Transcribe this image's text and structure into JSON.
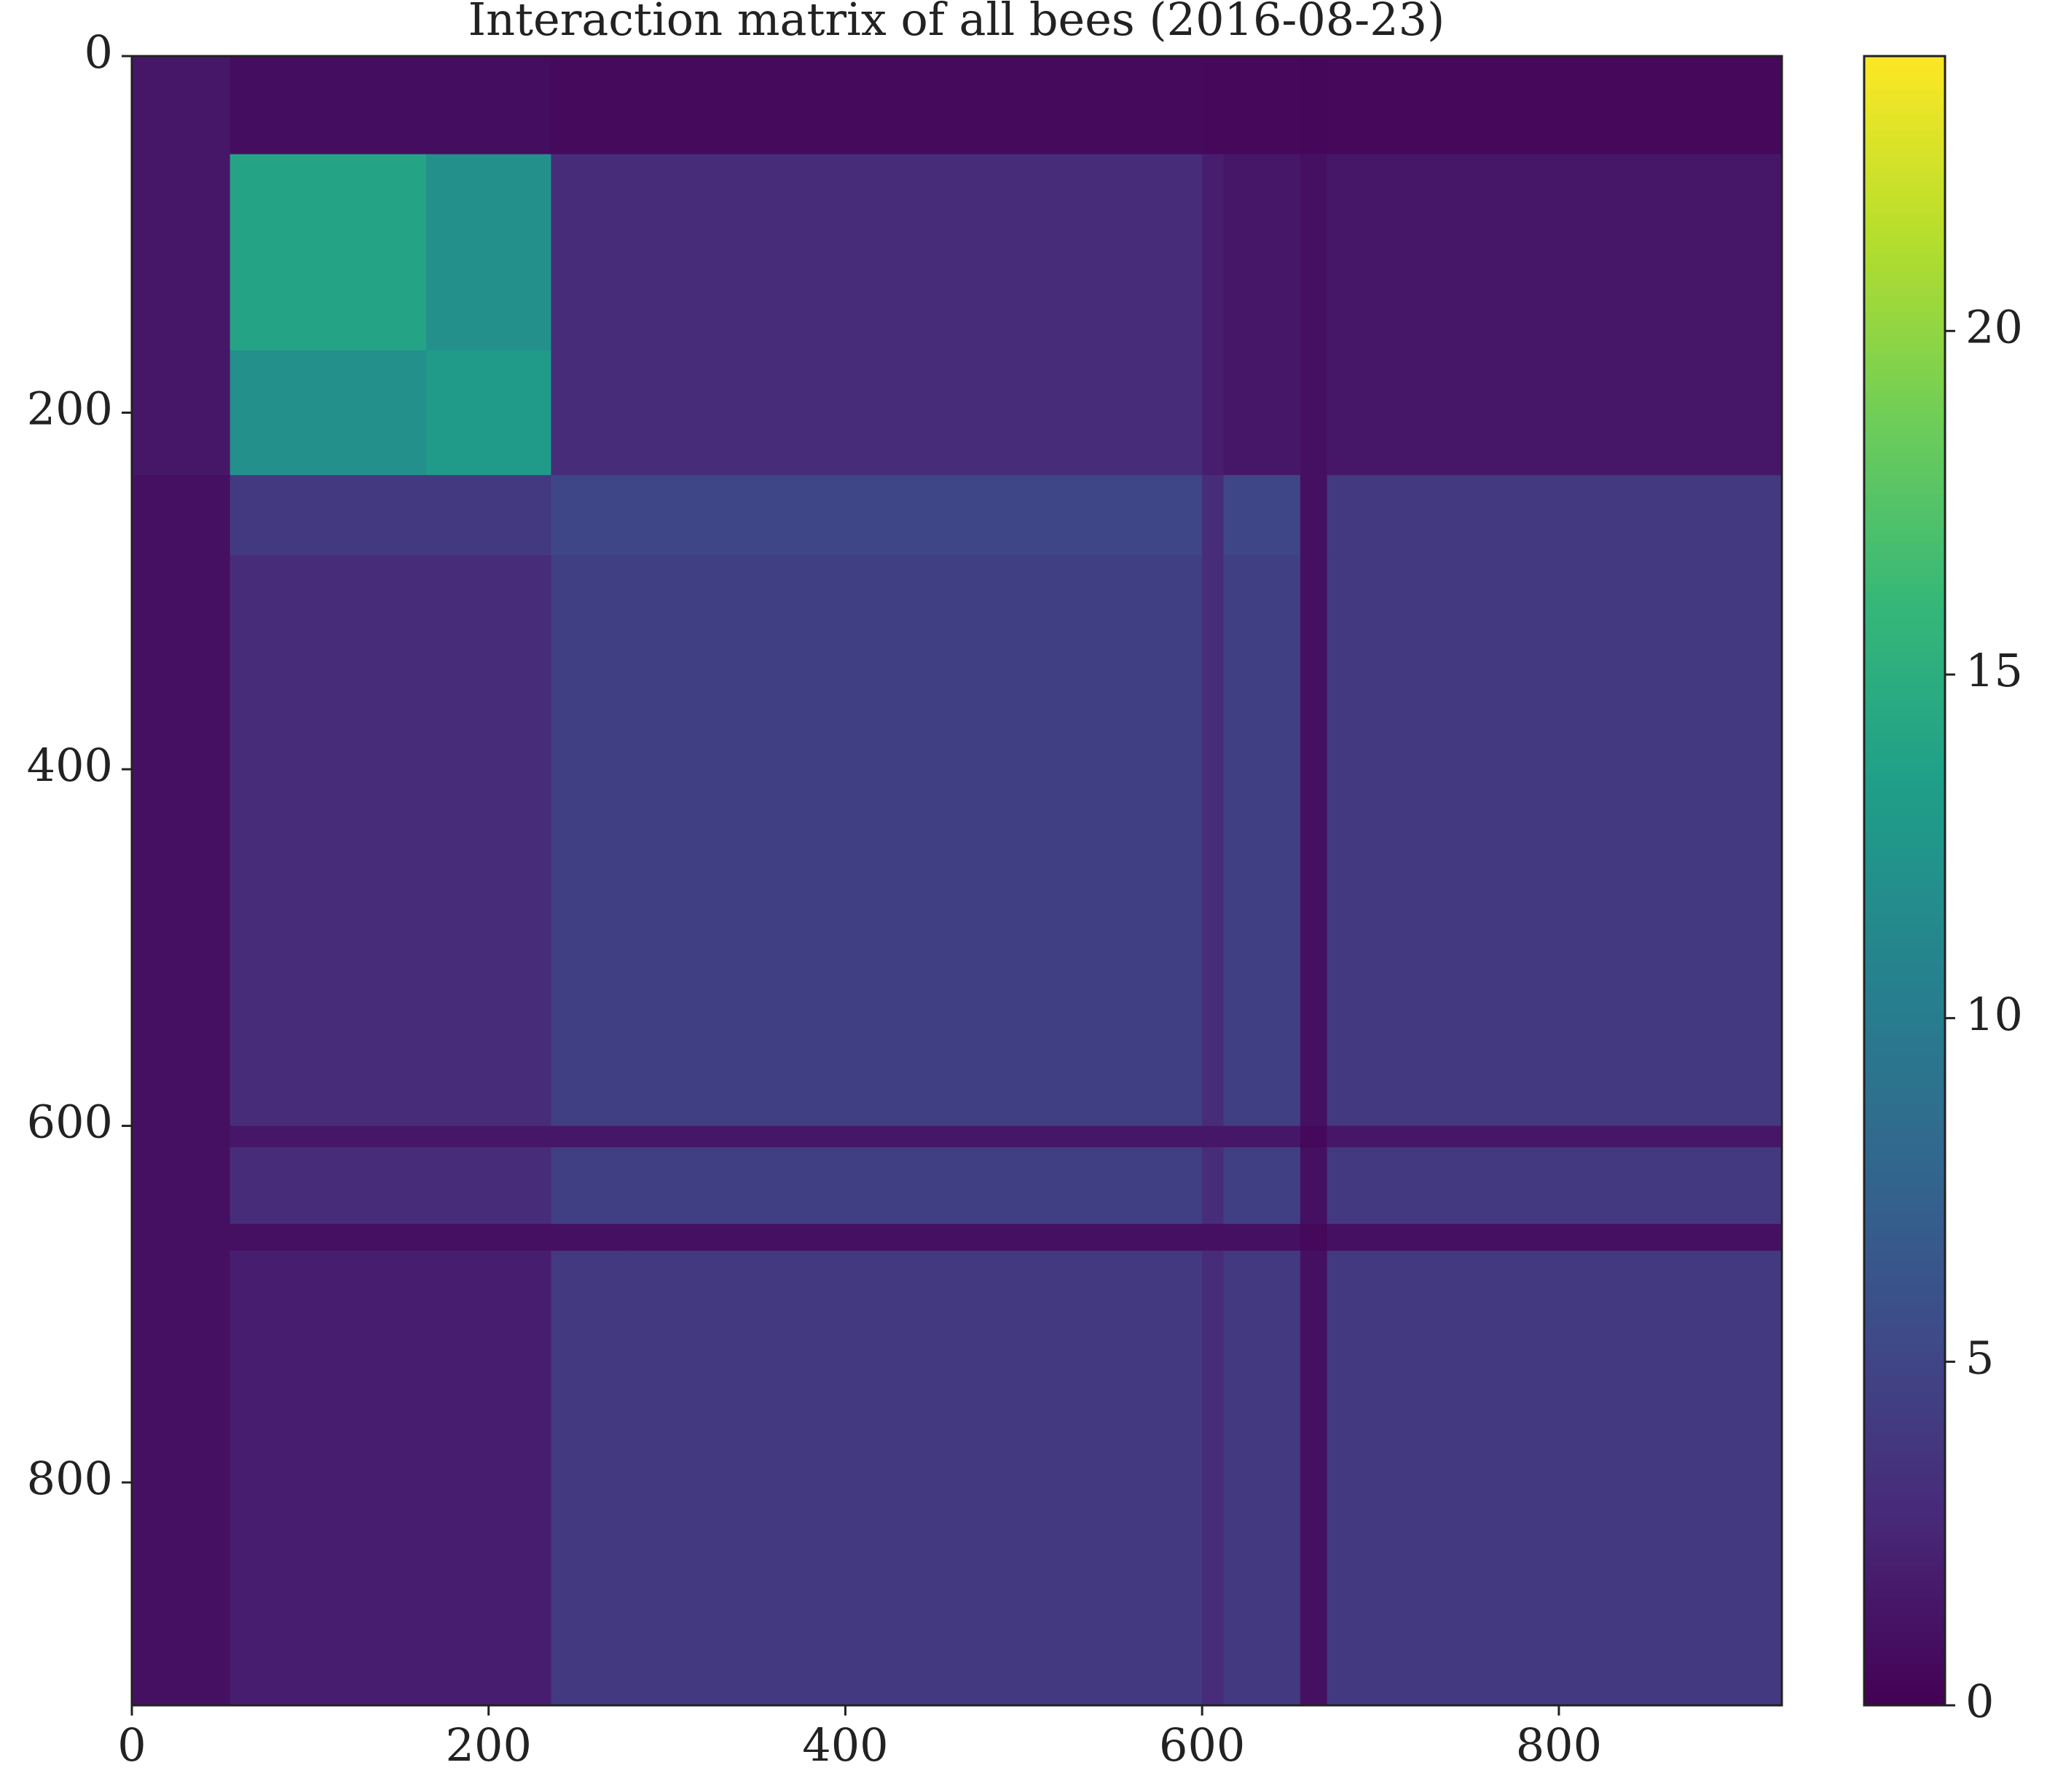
{
  "chart_data": {
    "type": "heatmap",
    "title": "Interaction matrix of all bees (2016-08-23)",
    "colormap": "viridis",
    "x_edges": [
      0,
      55,
      165,
      235,
      280,
      600,
      612,
      655,
      670,
      925
    ],
    "y_edges": [
      0,
      55,
      165,
      235,
      280,
      600,
      612,
      655,
      670,
      925
    ],
    "z": [
      [
        1.5,
        0.8,
        0.8,
        0.6,
        0.6,
        0.5,
        0.5,
        0.4,
        0.5
      ],
      [
        1.5,
        14,
        12,
        3,
        3,
        2,
        1.5,
        1,
        1.5
      ],
      [
        1.5,
        12,
        13,
        3,
        3,
        2,
        1.5,
        1,
        1.5
      ],
      [
        1,
        4,
        4,
        5,
        5,
        3,
        5,
        1,
        4
      ],
      [
        1,
        3,
        3,
        4.5,
        4.5,
        3,
        4.5,
        1,
        4
      ],
      [
        1,
        1.5,
        1.5,
        1.5,
        1.5,
        1.5,
        1.5,
        0.5,
        1.5
      ],
      [
        1,
        3,
        3,
        4.5,
        4.5,
        3,
        4.5,
        1,
        4
      ],
      [
        1,
        1,
        1,
        1,
        1,
        1,
        1,
        0.5,
        1
      ],
      [
        1,
        2,
        2,
        4,
        4,
        3,
        4,
        1,
        4
      ]
    ],
    "xlim": [
      0,
      925
    ],
    "ylim": [
      925,
      0
    ],
    "xticks": [
      0,
      200,
      400,
      600,
      800
    ],
    "yticks": [
      0,
      200,
      400,
      600,
      800
    ],
    "zlim": [
      0,
      24
    ],
    "zticks": [
      0,
      5,
      10,
      15,
      20
    ]
  }
}
